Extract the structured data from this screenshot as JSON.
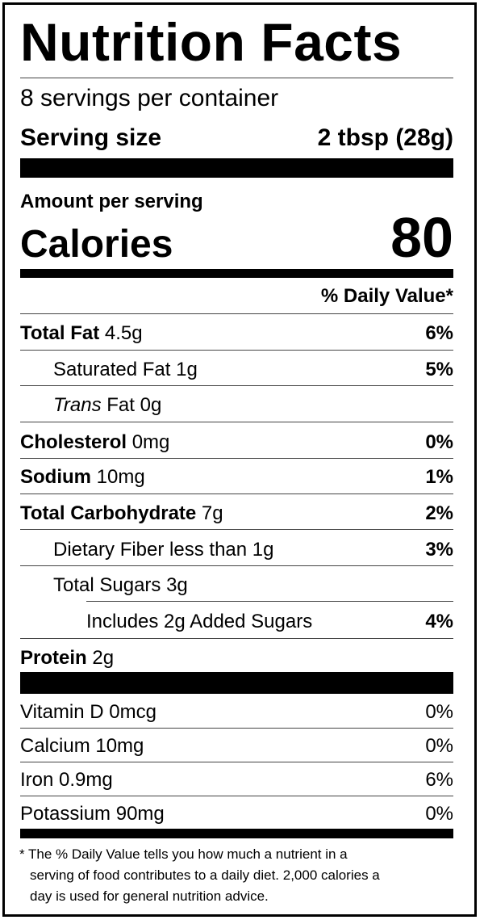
{
  "title": "Nutrition Facts",
  "servings_per_container": "8 servings per container",
  "serving_size": {
    "label": "Serving size",
    "value": "2 tbsp (28g)"
  },
  "amount_per_serving": "Amount per serving",
  "calories": {
    "label": "Calories",
    "value": "80"
  },
  "daily_value_header": "% Daily Value*",
  "nutrients": [
    {
      "name": "Total Fat",
      "amount": "4.5g",
      "dv": "6%"
    },
    {
      "name": "Saturated Fat",
      "amount": "1g",
      "dv": "5%"
    },
    {
      "name": "Trans",
      "suffix": "Fat",
      "amount": "0g",
      "dv": ""
    },
    {
      "name": "Cholesterol",
      "amount": "0mg",
      "dv": "0%"
    },
    {
      "name": "Sodium",
      "amount": "10mg",
      "dv": "1%"
    },
    {
      "name": "Total Carbohydrate",
      "amount": "7g",
      "dv": "2%"
    },
    {
      "name": "Dietary Fiber",
      "amount": "less than 1g",
      "dv": "3%"
    },
    {
      "name": "Total Sugars",
      "amount": "3g",
      "dv": ""
    },
    {
      "name": "Includes 2g Added Sugars",
      "amount": "",
      "dv": "4%"
    },
    {
      "name": "Protein",
      "amount": "2g",
      "dv": ""
    }
  ],
  "vitamins": [
    {
      "name": "Vitamin D",
      "amount": "0mcg",
      "dv": "0%"
    },
    {
      "name": "Calcium",
      "amount": "10mg",
      "dv": "0%"
    },
    {
      "name": "Iron",
      "amount": "0.9mg",
      "dv": "6%"
    },
    {
      "name": "Potassium",
      "amount": "90mg",
      "dv": "0%"
    }
  ],
  "footnote": {
    "line1": "* The  % Daily Value tells you how much a nutrient in a",
    "line2": "serving of food contributes to a daily diet. 2,000 calories a",
    "line3": "day is used for general nutrition advice."
  }
}
